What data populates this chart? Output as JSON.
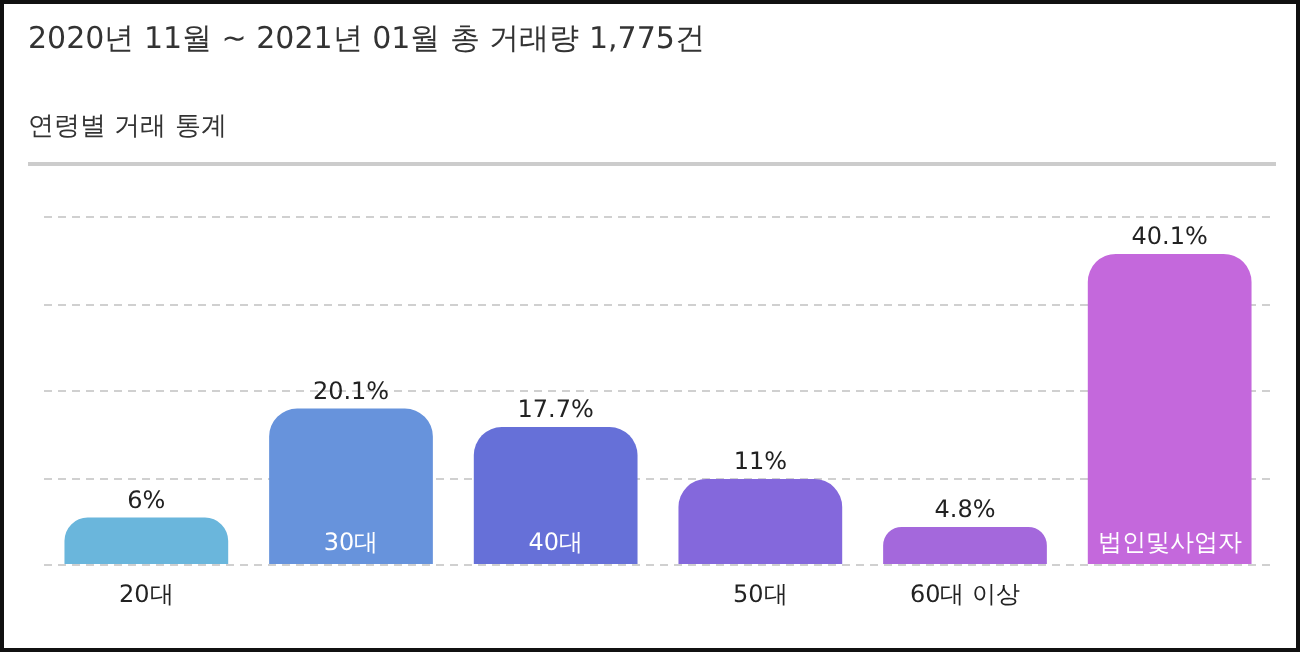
{
  "chart_data": {
    "type": "bar",
    "title": "2020년 11월 ~ 2021년 01월 총 거래량 1,775건",
    "subtitle": "연령별 거래 통계",
    "categories": [
      "20대",
      "30대",
      "40대",
      "50대",
      "60대 이상",
      "법인및사업자"
    ],
    "values": [
      6,
      20.1,
      17.7,
      11,
      4.8,
      40.1
    ],
    "colors": [
      "#6ab6dc",
      "#6793dc",
      "#6670d8",
      "#8468dc",
      "#a468dc",
      "#c468dc"
    ],
    "value_labels": [
      "6%",
      "20.1%",
      "17.7%",
      "11%",
      "4.8%",
      "40.1%"
    ],
    "ylim": [
      0,
      45
    ],
    "yticks": [
      {
        "value": 0,
        "label": null
      },
      {
        "value": 11.25,
        "label": null
      },
      {
        "value": 22.5,
        "label": null
      },
      {
        "value": 33.75,
        "label": null
      },
      {
        "value": 45,
        "label": null
      }
    ],
    "grid": "y",
    "legend": false,
    "tick_labels": "x"
  }
}
